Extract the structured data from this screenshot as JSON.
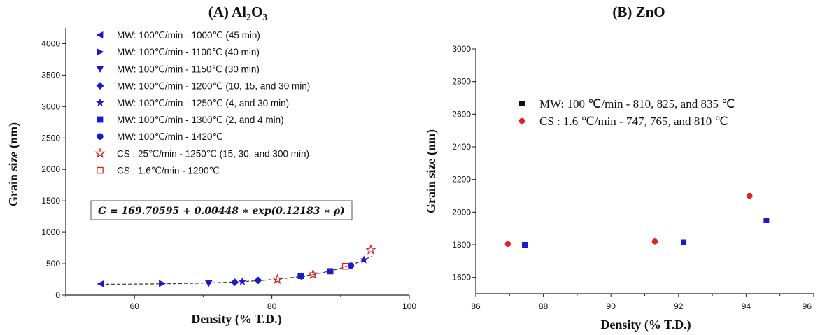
{
  "chart_data": [
    {
      "type": "scatter",
      "title": "(A) Al2O3",
      "title_main": "(A) Al",
      "title_sub1": "2",
      "title_mid": "O",
      "title_sub2": "3",
      "xlabel": "Density (% T.D.)",
      "ylabel": "Grain size (nm)",
      "xlim": [
        50,
        100
      ],
      "ylim": [
        0,
        4250
      ],
      "xticks": [
        "60",
        "80",
        "100"
      ],
      "yticks": [
        "0",
        "500",
        "1000",
        "1500",
        "2000",
        "2500",
        "3000",
        "3500",
        "4000"
      ],
      "legend_position": "top-left",
      "equation": "G = 169.70595 + 0.00448 ∗ exp(0.12183 ∗ ρ)",
      "fit": {
        "a": 169.70595,
        "b": 0.00448,
        "c": 0.12183,
        "x_range": [
          55,
          94.5
        ]
      },
      "series": [
        {
          "name": "MW: 100℃/min - 1000℃ (45 min)",
          "marker": "triangle-left",
          "color": "#1a1acc",
          "points": [
            [
              55.1,
              180
            ]
          ]
        },
        {
          "name": "MW: 100℃/min - 1100℃ (40 min)",
          "marker": "triangle-right",
          "color": "#1a1acc",
          "points": [
            [
              64.0,
              185
            ]
          ]
        },
        {
          "name": "MW: 100℃/min - 1150℃ (30 min)",
          "marker": "triangle-down",
          "color": "#1a1acc",
          "points": [
            [
              70.8,
              190
            ]
          ]
        },
        {
          "name": "MW: 100℃/min - 1200℃ (10, 15, and 30 min)",
          "marker": "diamond",
          "color": "#1a1acc",
          "points": [
            [
              74.6,
              205
            ],
            [
              78.0,
              235
            ],
            [
              84.3,
              300
            ]
          ]
        },
        {
          "name": "MW: 100℃/min - 1250℃ (4, and 30 min)",
          "marker": "star",
          "color": "#1a1acc",
          "points": [
            [
              75.7,
              215
            ],
            [
              93.4,
              560
            ]
          ]
        },
        {
          "name": "MW: 100℃/min - 1300℃ (2, and 4 min)",
          "marker": "square",
          "color": "#1a1acc",
          "points": [
            [
              84.2,
              305
            ],
            [
              88.5,
              380
            ]
          ]
        },
        {
          "name": "MW: 100℃/min - 1420℃",
          "marker": "circle",
          "color": "#1a1acc",
          "points": [
            [
              91.5,
              470
            ]
          ]
        },
        {
          "name": "CS :   25℃/min - 1250℃ (15, 30, and 300 min)",
          "marker": "star-open",
          "color": "#dd2222",
          "points": [
            [
              80.8,
              250
            ],
            [
              86.0,
              330
            ],
            [
              94.4,
              720
            ]
          ]
        },
        {
          "name": "CS :  1.6℃/min - 1290℃",
          "marker": "square-open",
          "color": "#dd2222",
          "points": [
            [
              90.7,
              460
            ]
          ]
        }
      ]
    },
    {
      "type": "scatter",
      "title": "(B) ZnO",
      "xlabel": "Density (% T.D.)",
      "ylabel": "Grain size (nm)",
      "xlim": [
        86,
        96
      ],
      "ylim": [
        1500,
        3000
      ],
      "xticks": [
        "86",
        "88",
        "90",
        "92",
        "94",
        "96"
      ],
      "yticks": [
        "1600",
        "1800",
        "2000",
        "2200",
        "2400",
        "2600",
        "2800",
        "3000"
      ],
      "legend_position": "top-left",
      "series": [
        {
          "name": "MW: 100 ℃/min - 810, 825, and 835 ℃",
          "marker": "square",
          "color": "#1a1acc",
          "legend_color": "#111111",
          "points": [
            [
              87.45,
              1800
            ],
            [
              92.15,
              1815
            ],
            [
              94.6,
              1950
            ]
          ]
        },
        {
          "name": "CS  : 1.6 ℃/min - 747, 765, and 810 ℃",
          "marker": "circle",
          "color": "#dd2222",
          "points": [
            [
              86.95,
              1805
            ],
            [
              91.3,
              1820
            ],
            [
              94.1,
              2100
            ]
          ]
        }
      ]
    }
  ]
}
